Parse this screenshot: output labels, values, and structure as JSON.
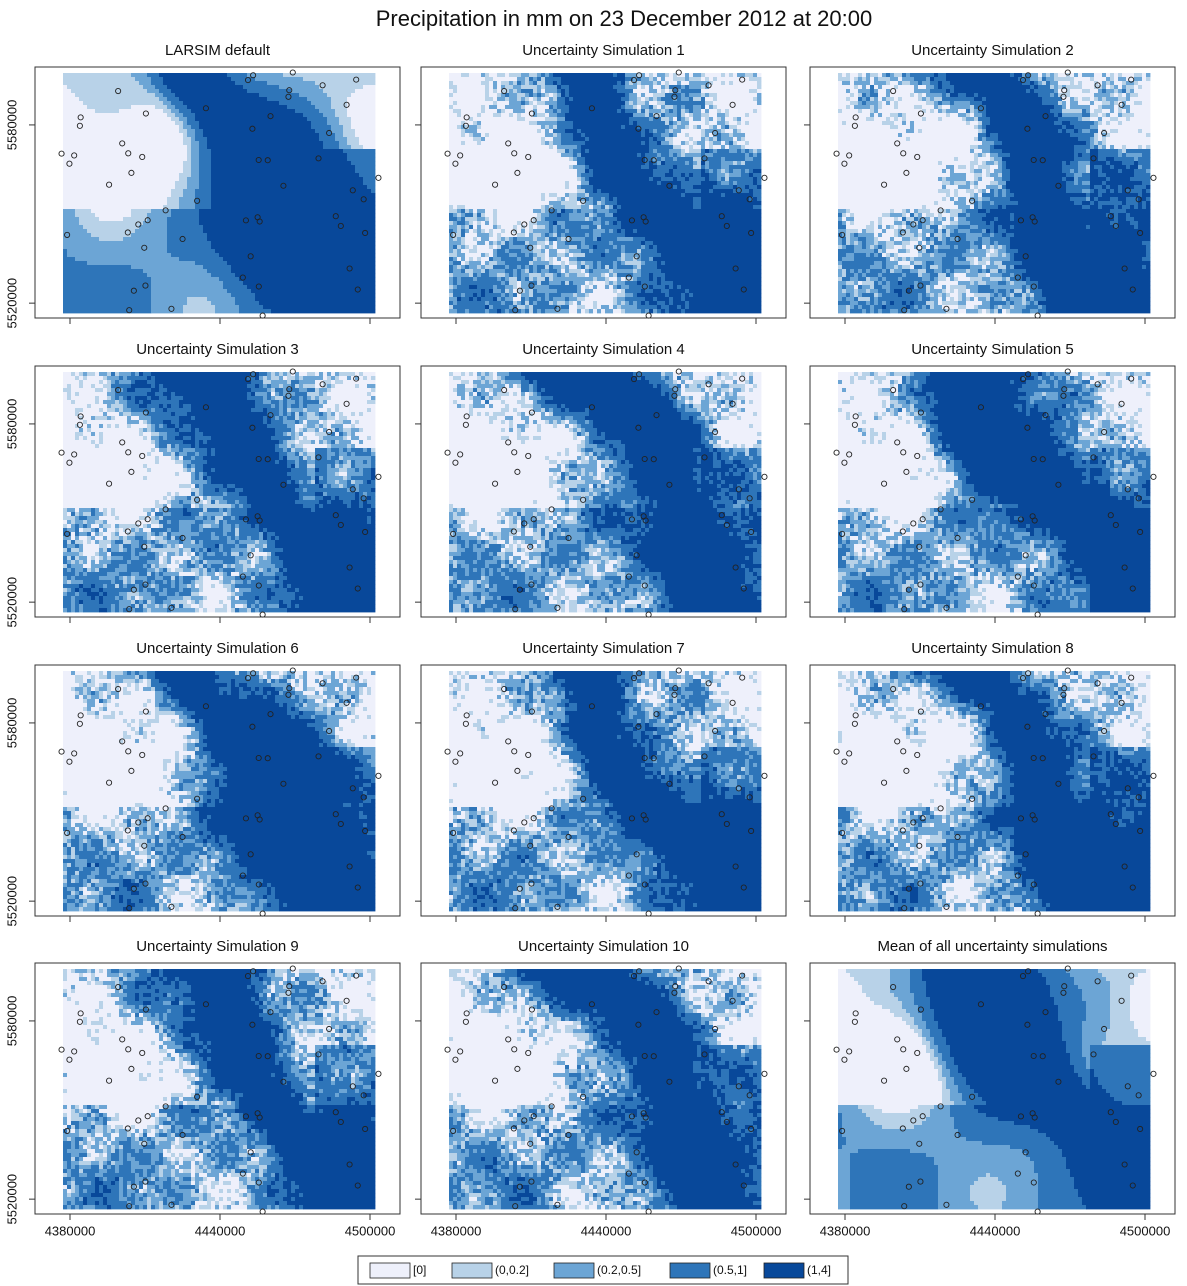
{
  "chart_data": {
    "type": "raster-grid",
    "title": "Precipitation in mm on 23 December 2012 at 20:00",
    "panels": [
      "LARSIM default",
      "Uncertainty Simulation 1",
      "Uncertainty Simulation 2",
      "Uncertainty Simulation 3",
      "Uncertainty Simulation 4",
      "Uncertainty Simulation 5",
      "Uncertainty Simulation 6",
      "Uncertainty Simulation 7",
      "Uncertainty Simulation 8",
      "Uncertainty Simulation 9",
      "Uncertainty Simulation 10",
      "Mean of all uncertainty simulations"
    ],
    "xlim": [
      4366000,
      4512000
    ],
    "ylim": [
      5515000,
      5599500
    ],
    "xticks": [
      4380000,
      4440000,
      4500000
    ],
    "yticks": [
      5520000,
      5580000
    ],
    "legend": [
      {
        "label": "[0]",
        "color": "#eef0fb"
      },
      {
        "label": "(0,0.2]",
        "color": "#b8d2e8"
      },
      {
        "label": "(0.2,0.5]",
        "color": "#6ca5d5"
      },
      {
        "label": "(0.5,1]",
        "color": "#2e75b9"
      },
      {
        "label": "(1,4]",
        "color": "#08489a"
      }
    ]
  }
}
